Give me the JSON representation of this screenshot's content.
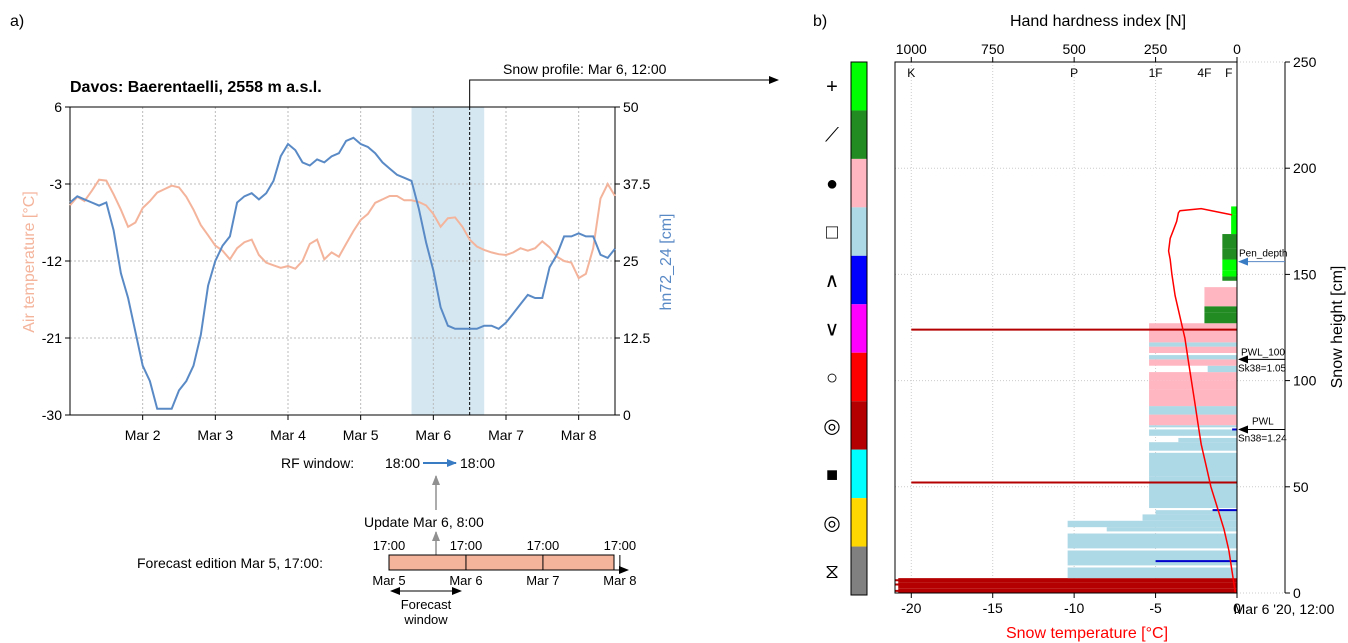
{
  "colors": {
    "air_temperature": "#f4b49c",
    "snow_depth": "#5a8ac6",
    "snow_temperature": "#ff0000",
    "forecast_bar": "#f4b49c",
    "highlight": "#d5e8f2",
    "arrow_blue": "#3a7cc4",
    "gray_arrow": "#909090"
  },
  "panel_a": {
    "label": "a)",
    "snow_profile_label": "Snow profile: Mar 6, 12:00",
    "rf_window": {
      "start": "18:00",
      "end": "18:00",
      "label_prefix": "RF window:"
    },
    "update_label": "Update Mar 6, 8:00",
    "forecast_edition_label": "Forecast edition Mar 5, 17:00:",
    "forecast_window_label": [
      "Forecast",
      "window"
    ],
    "timeline_ticks": [
      {
        "label_top": "17:00",
        "label_bottom": "Mar 5",
        "day": 0
      },
      {
        "label_top": "17:00",
        "label_bottom": "Mar 6",
        "day": 1
      },
      {
        "label_top": "17:00",
        "label_bottom": "Mar 7",
        "day": 2
      },
      {
        "label_top": "17:00",
        "label_bottom": "Mar 8",
        "day": 3
      }
    ]
  },
  "panel_b": {
    "label": "b)",
    "pen_depth_label": "Pen_depth",
    "pwl100_labels": [
      "PWL_100",
      "Sk38=1.05"
    ],
    "pwl_labels": [
      "PWL",
      "Sn38=1.24"
    ],
    "grain_icons": [
      "precipitation-particles-icon",
      "decomposing-fragments-icon",
      "rounded-grains-icon",
      "faceted-crystals-icon",
      "depth-hoar-icon",
      "surface-hoar-icon",
      "melt-forms-icon",
      "melt-freeze-crust-icon",
      "ice-layer-icon",
      "rounding-facets-icon",
      "graupel-icon"
    ],
    "grain_icon_glyphs": [
      "+",
      "⟋",
      "●",
      "□",
      "∧",
      "∨",
      "○",
      "◎",
      "■",
      "◎",
      "⧖"
    ],
    "grain_colors": [
      "#00ff00",
      "#228b22",
      "#ffb6c1",
      "#add8e6",
      "#0000ff",
      "#ff00ff",
      "#ff0000",
      "#b40000",
      "#00ffff",
      "#ffd700",
      "#808080"
    ]
  },
  "chart_data": [
    {
      "type": "line",
      "title": "Davos: Baerentaelli, 2558 m a.s.l.",
      "xlabel": "",
      "x_tick_labels": [
        "Mar 2",
        "Mar 3",
        "Mar 4",
        "Mar 5",
        "Mar 6",
        "Mar 7",
        "Mar 8"
      ],
      "x_range_days": [
        1,
        8.5
      ],
      "ylabel_left": "Air temperature [°C]",
      "ylim_left": [
        -30,
        6
      ],
      "yticks_left": [
        6,
        -3,
        -12,
        -21,
        -30
      ],
      "ylabel_right": "hn72_24 [cm]",
      "ylim_right": [
        0,
        50
      ],
      "yticks_right": [
        "0",
        "12.5",
        "25",
        "37.5",
        "50"
      ],
      "grid": true,
      "highlight_range": [
        5.7,
        6.7
      ],
      "profile_time": 6.5,
      "series": [
        {
          "name": "Air temperature [°C]",
          "axis": "left",
          "x": [
            1.0,
            1.1,
            1.2,
            1.3,
            1.4,
            1.5,
            1.6,
            1.7,
            1.8,
            1.9,
            2.0,
            2.1,
            2.2,
            2.3,
            2.4,
            2.5,
            2.6,
            2.7,
            2.8,
            2.9,
            3.0,
            3.1,
            3.2,
            3.3,
            3.4,
            3.5,
            3.6,
            3.7,
            3.8,
            3.9,
            4.0,
            4.1,
            4.2,
            4.3,
            4.4,
            4.5,
            4.6,
            4.7,
            4.8,
            4.9,
            5.0,
            5.1,
            5.2,
            5.3,
            5.4,
            5.5,
            5.6,
            5.7,
            5.8,
            5.9,
            6.0,
            6.1,
            6.2,
            6.3,
            6.4,
            6.5,
            6.6,
            6.7,
            6.8,
            6.9,
            7.0,
            7.1,
            7.2,
            7.3,
            7.4,
            7.5,
            7.6,
            7.7,
            7.8,
            7.9,
            8.0,
            8.1,
            8.2,
            8.3,
            8.4,
            8.5
          ],
          "y": [
            -5.5,
            -4.5,
            -5.0,
            -3.8,
            -2.5,
            -2.6,
            -4.2,
            -6.0,
            -8.0,
            -7.5,
            -5.8,
            -5.0,
            -4.0,
            -3.6,
            -3.2,
            -3.4,
            -4.5,
            -6.0,
            -7.8,
            -9.0,
            -10.2,
            -10.8,
            -11.8,
            -10.5,
            -9.8,
            -9.5,
            -11.3,
            -12.2,
            -12.5,
            -12.8,
            -12.6,
            -12.9,
            -12.0,
            -10.0,
            -9.5,
            -11.8,
            -11.0,
            -11.5,
            -10.0,
            -8.5,
            -7.2,
            -6.5,
            -5.2,
            -4.8,
            -4.4,
            -4.4,
            -4.9,
            -4.9,
            -5.1,
            -5.5,
            -6.5,
            -8.0,
            -7.0,
            -6.9,
            -8.0,
            -9.5,
            -10.3,
            -10.7,
            -11.0,
            -11.2,
            -11.3,
            -11.0,
            -10.5,
            -10.8,
            -10.5,
            -9.7,
            -10.4,
            -11.5,
            -12.0,
            -12.2,
            -14.0,
            -13.5,
            -10.5,
            -4.7,
            -3.0,
            -4.4
          ]
        },
        {
          "name": "hn72_24 [cm]",
          "axis": "right",
          "x": [
            1.0,
            1.1,
            1.2,
            1.3,
            1.4,
            1.5,
            1.6,
            1.7,
            1.8,
            1.9,
            2.0,
            2.1,
            2.2,
            2.3,
            2.4,
            2.5,
            2.6,
            2.7,
            2.8,
            2.9,
            3.0,
            3.1,
            3.2,
            3.3,
            3.4,
            3.5,
            3.6,
            3.7,
            3.8,
            3.9,
            4.0,
            4.1,
            4.2,
            4.3,
            4.4,
            4.5,
            4.6,
            4.7,
            4.8,
            4.9,
            5.0,
            5.1,
            5.2,
            5.3,
            5.4,
            5.5,
            5.6,
            5.7,
            5.8,
            5.9,
            6.0,
            6.1,
            6.2,
            6.3,
            6.4,
            6.5,
            6.6,
            6.7,
            6.8,
            6.9,
            7.0,
            7.1,
            7.2,
            7.3,
            7.4,
            7.5,
            7.6,
            7.7,
            7.8,
            7.9,
            8.0,
            8.1,
            8.2,
            8.3,
            8.4,
            8.5
          ],
          "y": [
            34.5,
            35.5,
            35.0,
            34.5,
            34.0,
            34.5,
            30.0,
            23.0,
            19.0,
            13.5,
            8.0,
            5.5,
            1.0,
            1.0,
            1.0,
            4.0,
            5.5,
            8.0,
            13.0,
            21.0,
            25.0,
            27.5,
            29.0,
            34.5,
            35.5,
            36.0,
            35.0,
            36.0,
            38.0,
            42.0,
            44.0,
            43.0,
            41.0,
            40.5,
            41.5,
            41.0,
            42.0,
            42.5,
            44.5,
            45.0,
            44.0,
            43.5,
            42.5,
            41.0,
            40.0,
            39.0,
            38.5,
            38.0,
            33.5,
            28.0,
            23.5,
            17.5,
            14.5,
            14.0,
            14.0,
            14.0,
            14.0,
            14.5,
            14.5,
            14.0,
            15.0,
            16.5,
            18.0,
            19.5,
            19.0,
            19.0,
            24.0,
            26.0,
            29.0,
            29.0,
            29.5,
            29.0,
            29.0,
            26.0,
            25.5,
            27.0
          ]
        }
      ]
    },
    {
      "type": "bar",
      "title": "Hand hardness index [N]",
      "xlabel": "Snow temperature [°C]",
      "ylabel": "Snow height [cm]",
      "x_tick_labels": [
        "-20",
        "-15",
        "-10",
        "-5",
        "0"
      ],
      "xlim_temp": [
        -21,
        0
      ],
      "top_tick_labels": [
        "1000",
        "750",
        "500",
        "250",
        "0"
      ],
      "hardness_labels": [
        {
          "label": "K",
          "N": 1000
        },
        {
          "label": "P",
          "N": 500
        },
        {
          "label": "1F",
          "N": 250
        },
        {
          "label": "4F",
          "N": 100
        },
        {
          "label": "F",
          "N": 25
        }
      ],
      "ylim": [
        0,
        250
      ],
      "yticks": [
        "0",
        "50",
        "100",
        "150",
        "200",
        "250"
      ],
      "date_label": "Mar 6 '20, 12:00",
      "grid": true,
      "layers": [
        {
          "bottom": 0,
          "top": 2,
          "hardness_N": 1040,
          "color": "#b40000"
        },
        {
          "bottom": 2,
          "top": 5,
          "hardness_N": 1040,
          "color": "#b40000"
        },
        {
          "bottom": 5,
          "top": 7,
          "hardness_N": 1040,
          "color": "#b40000"
        },
        {
          "bottom": 7,
          "top": 12,
          "hardness_N": 520,
          "color": "#add8e6"
        },
        {
          "bottom": 13,
          "top": 20,
          "hardness_N": 520,
          "color": "#add8e6"
        },
        {
          "bottom": 21,
          "top": 28,
          "hardness_N": 520,
          "color": "#add8e6"
        },
        {
          "bottom": 29,
          "top": 31,
          "hardness_N": 400,
          "color": "#add8e6"
        },
        {
          "bottom": 31,
          "top": 34,
          "hardness_N": 520,
          "color": "#add8e6"
        },
        {
          "bottom": 34,
          "top": 37,
          "hardness_N": 290,
          "color": "#add8e6"
        },
        {
          "bottom": 37,
          "top": 39,
          "hardness_N": 250,
          "color": "#add8e6"
        },
        {
          "bottom": 40,
          "top": 55,
          "hardness_N": 270,
          "color": "#add8e6"
        },
        {
          "bottom": 55,
          "top": 66,
          "hardness_N": 270,
          "color": "#add8e6"
        },
        {
          "bottom": 67,
          "top": 71,
          "hardness_N": 270,
          "color": "#add8e6"
        },
        {
          "bottom": 71,
          "top": 73,
          "hardness_N": 180,
          "color": "#add8e6"
        },
        {
          "bottom": 74,
          "top": 77,
          "hardness_N": 270,
          "color": "#add8e6"
        },
        {
          "bottom": 78,
          "top": 79,
          "hardness_N": 270,
          "color": "#add8e6"
        },
        {
          "bottom": 79,
          "top": 84,
          "hardness_N": 270,
          "color": "#ffb6c1"
        },
        {
          "bottom": 84,
          "top": 88,
          "hardness_N": 270,
          "color": "#add8e6"
        },
        {
          "bottom": 88,
          "top": 96,
          "hardness_N": 270,
          "color": "#ffb6c1"
        },
        {
          "bottom": 96,
          "top": 100,
          "hardness_N": 270,
          "color": "#ffb6c1"
        },
        {
          "bottom": 100,
          "top": 104,
          "hardness_N": 270,
          "color": "#ffb6c1"
        },
        {
          "bottom": 104,
          "top": 107,
          "hardness_N": 90,
          "color": "#add8e6"
        },
        {
          "bottom": 107,
          "top": 110,
          "hardness_N": 270,
          "color": "#ffb6c1"
        },
        {
          "bottom": 110,
          "top": 112,
          "hardness_N": 270,
          "color": "#add8e6"
        },
        {
          "bottom": 113,
          "top": 116,
          "hardness_N": 270,
          "color": "#ffb6c1"
        },
        {
          "bottom": 116,
          "top": 118,
          "hardness_N": 270,
          "color": "#add8e6"
        },
        {
          "bottom": 118,
          "top": 125,
          "hardness_N": 270,
          "color": "#ffb6c1"
        },
        {
          "bottom": 125,
          "top": 127,
          "hardness_N": 270,
          "color": "#ffb6c1"
        },
        {
          "bottom": 127,
          "top": 132,
          "hardness_N": 100,
          "color": "#228b22"
        },
        {
          "bottom": 132,
          "top": 135,
          "hardness_N": 100,
          "color": "#228b22"
        },
        {
          "bottom": 135,
          "top": 137,
          "hardness_N": 100,
          "color": "#ffb6c1"
        },
        {
          "bottom": 137,
          "top": 144,
          "hardness_N": 100,
          "color": "#ffb6c1"
        },
        {
          "bottom": 147,
          "top": 149,
          "hardness_N": 45,
          "color": "#228b22"
        },
        {
          "bottom": 149,
          "top": 152,
          "hardness_N": 45,
          "color": "#00ff00"
        },
        {
          "bottom": 152,
          "top": 157,
          "hardness_N": 45,
          "color": "#00ff00"
        },
        {
          "bottom": 157,
          "top": 162,
          "hardness_N": 45,
          "color": "#228b22"
        },
        {
          "bottom": 162,
          "top": 169,
          "hardness_N": 45,
          "color": "#228b22"
        },
        {
          "bottom": 169,
          "top": 178,
          "hardness_N": 18,
          "color": "#00ff00"
        },
        {
          "bottom": 178,
          "top": 182,
          "hardness_N": 18,
          "color": "#00ff00"
        }
      ],
      "marker_lines": [
        {
          "height": 1,
          "x_start_temp": -21,
          "color": "#b40000"
        },
        {
          "height": 4,
          "x_start_temp": -21,
          "color": "#b40000"
        },
        {
          "height": 6,
          "x_start_temp": -21,
          "color": "#b40000"
        },
        {
          "height": 52,
          "x_start_temp": -20,
          "color": "#b40000"
        },
        {
          "height": 124,
          "x_start_temp": -20,
          "color": "#b40000"
        },
        {
          "height": 15,
          "x_start_temp": -5,
          "color": "#0000cc"
        },
        {
          "height": 39,
          "x_start_temp": -1.5,
          "color": "#0000cc"
        },
        {
          "height": 77,
          "x_start_temp": -0.3,
          "color": "#0000cc"
        }
      ],
      "snow_temperature_profile": {
        "temp": [
          -0.1,
          -0.3,
          -0.5,
          -0.8,
          -1.2,
          -1.6,
          -1.9,
          -2.2,
          -2.4,
          -2.6,
          -2.8,
          -3.0,
          -3.2,
          -3.5,
          -3.8,
          -4.0,
          -4.1,
          -4.2,
          -4.1,
          -3.9,
          -3.7,
          -3.6,
          -3.5,
          -2.2,
          -0.3
        ],
        "height": [
          0,
          10,
          20,
          30,
          40,
          50,
          60,
          70,
          80,
          90,
          100,
          110,
          120,
          130,
          140,
          150,
          157,
          161,
          167,
          171,
          175,
          179,
          180,
          181,
          178
        ]
      },
      "pen_depth_cm": 156,
      "pwl_100_cm": 110,
      "pwl_cm": 77
    }
  ]
}
